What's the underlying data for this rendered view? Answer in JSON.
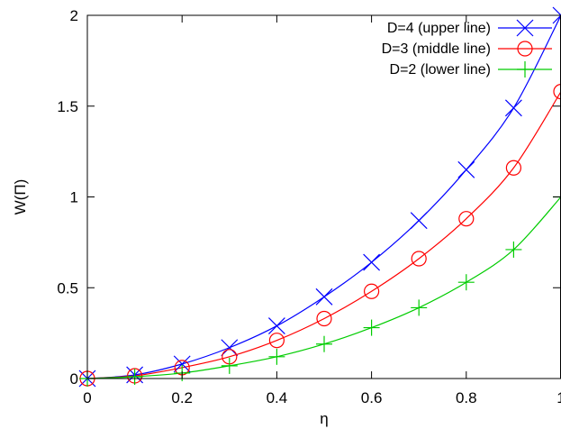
{
  "chart_data": {
    "type": "line",
    "title": "",
    "xlabel": "η",
    "ylabel": "W(Π)",
    "xlim": [
      0,
      1
    ],
    "ylim": [
      0,
      2
    ],
    "xticks": [
      0,
      0.2,
      0.4,
      0.6,
      0.8,
      1
    ],
    "xtick_labels": [
      "0",
      "0.2",
      "0.4",
      "0.6",
      "0.8",
      "1"
    ],
    "yticks": [
      0,
      0.5,
      1,
      1.5,
      2
    ],
    "ytick_labels": [
      "0",
      "0.5",
      "1",
      "1.5",
      "2"
    ],
    "grid": false,
    "legend_position": "top-right",
    "x": [
      0,
      0.1,
      0.2,
      0.3,
      0.4,
      0.5,
      0.6,
      0.7,
      0.8,
      0.9,
      1.0
    ],
    "series": [
      {
        "name": "D=4 (upper line)",
        "color": "#0000ff",
        "marker": "x-cross",
        "values": [
          0,
          0.02,
          0.08,
          0.17,
          0.29,
          0.45,
          0.64,
          0.87,
          1.15,
          1.49,
          2.0
        ]
      },
      {
        "name": "D=3 (middle line)",
        "color": "#ff0000",
        "marker": "circle",
        "values": [
          0,
          0.015,
          0.06,
          0.12,
          0.21,
          0.33,
          0.48,
          0.66,
          0.88,
          1.16,
          1.58
        ]
      },
      {
        "name": "D=2 (lower line)",
        "color": "#00cc00",
        "marker": "plus",
        "values": [
          0,
          0.01,
          0.03,
          0.07,
          0.12,
          0.19,
          0.28,
          0.39,
          0.53,
          0.71,
          1.0
        ]
      }
    ]
  }
}
